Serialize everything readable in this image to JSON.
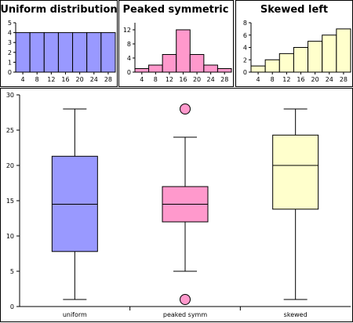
{
  "chart_data": [
    {
      "type": "bar",
      "title": "Uniform distribution",
      "categories": [
        "4",
        "8",
        "12",
        "16",
        "20",
        "24",
        "28"
      ],
      "values": [
        4,
        4,
        4,
        4,
        4,
        4,
        4
      ],
      "xticks": [
        "4",
        "8",
        "12",
        "16",
        "20",
        "24",
        "28"
      ],
      "yticks": [
        "0",
        "1",
        "2",
        "3",
        "4",
        "5"
      ],
      "ylim": [
        0,
        5
      ],
      "color": "#9999ff"
    },
    {
      "type": "bar",
      "title": "Peaked symmetric",
      "categories": [
        "4",
        "8",
        "12",
        "16",
        "20",
        "24",
        "28"
      ],
      "values": [
        1,
        2,
        5,
        12,
        5,
        2,
        1
      ],
      "xticks": [
        "4",
        "8",
        "12",
        "16",
        "20",
        "24",
        "28"
      ],
      "yticks": [
        "0",
        "4",
        "8",
        "12"
      ],
      "ylim": [
        0,
        14
      ],
      "color": "#ff99cc"
    },
    {
      "type": "bar",
      "title": "Skewed left",
      "categories": [
        "4",
        "8",
        "12",
        "16",
        "20",
        "24",
        "28"
      ],
      "values": [
        1,
        2,
        3,
        4,
        5,
        6,
        7
      ],
      "xticks": [
        "4",
        "8",
        "12",
        "16",
        "20",
        "24",
        "28"
      ],
      "yticks": [
        "0",
        "2",
        "4",
        "6",
        "8"
      ],
      "ylim": [
        0,
        8
      ],
      "color": "#ffffcc"
    },
    {
      "type": "box",
      "title": "",
      "categories": [
        "uniform",
        "peaked symm",
        "skewed"
      ],
      "ylim": [
        0,
        30
      ],
      "yticks": [
        "0",
        "5",
        "10",
        "15",
        "20",
        "25",
        "30"
      ],
      "series": [
        {
          "category": "uniform",
          "whisker_low": 1,
          "q1": 7.8,
          "median": 14.5,
          "q3": 21.3,
          "whisker_high": 28,
          "outliers": [],
          "color": "#9999ff"
        },
        {
          "category": "peaked symm",
          "whisker_low": 5,
          "q1": 12,
          "median": 14.5,
          "q3": 17,
          "whisker_high": 24,
          "outliers": [
            1,
            28
          ],
          "color": "#ff99cc"
        },
        {
          "category": "skewed",
          "whisker_low": 1,
          "q1": 13.8,
          "median": 20,
          "q3": 24.3,
          "whisker_high": 28,
          "outliers": [],
          "color": "#ffffcc"
        }
      ]
    }
  ]
}
